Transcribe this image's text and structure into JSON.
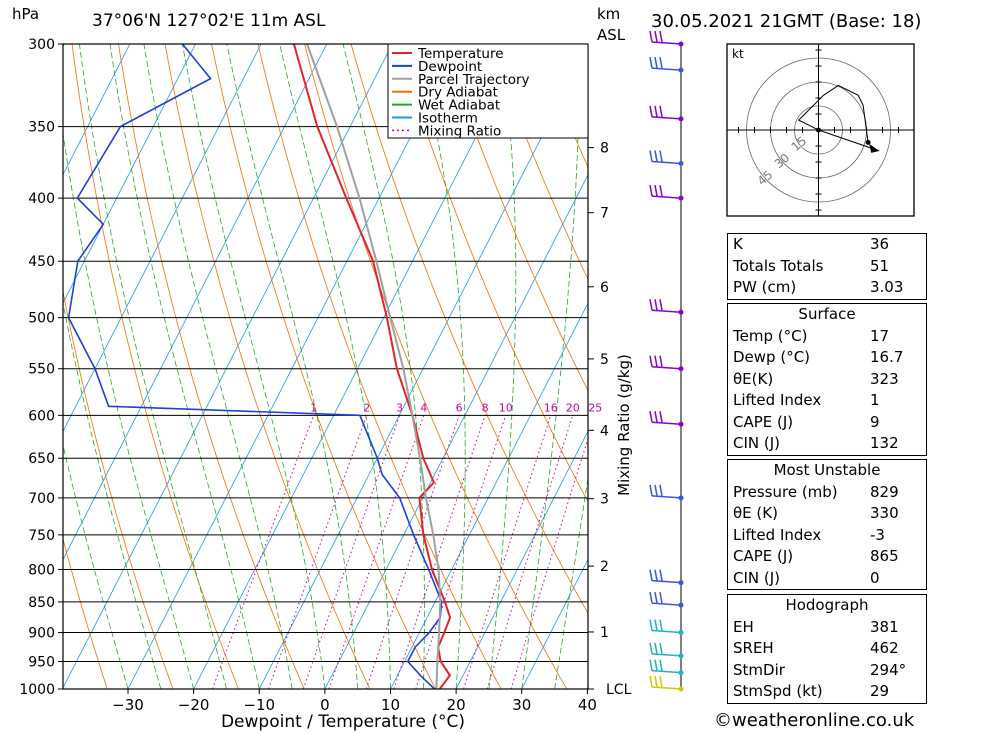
{
  "header": {
    "location": "37°06'N 127°02'E 11m ASL",
    "hpa_label": "hPa",
    "km_label": "km",
    "asl_label": "ASL",
    "datetime": "30.05.2021 21GMT (Base: 18)"
  },
  "footer": {
    "credit": "©weatheronline.co.uk"
  },
  "chart_data": {
    "type": "line",
    "subtype": "skew-T log-P diagram",
    "xlabel": "Dewpoint / Temperature (°C)",
    "ylabel": "hPa",
    "right_axis_label": "Mixing Ratio (g/kg)",
    "x_ticks": [
      -30,
      -20,
      -10,
      0,
      10,
      20,
      30,
      40
    ],
    "xlim": [
      -40,
      40
    ],
    "pressure_levels": [
      300,
      350,
      400,
      450,
      500,
      550,
      600,
      650,
      700,
      750,
      800,
      850,
      900,
      950,
      1000
    ],
    "ylim": [
      1000,
      300
    ],
    "km_ticks": [
      {
        "km": "8",
        "p": 364
      },
      {
        "km": "7",
        "p": 411
      },
      {
        "km": "6",
        "p": 472
      },
      {
        "km": "5",
        "p": 540
      },
      {
        "km": "4",
        "p": 617
      },
      {
        "km": "3",
        "p": 701
      },
      {
        "km": "2",
        "p": 795
      },
      {
        "km": "1",
        "p": 899
      },
      {
        "km": "LCL",
        "p": 1000
      }
    ],
    "mixing_ratio_labels": [
      "1",
      "2",
      "3",
      "4",
      "6",
      "8",
      "10",
      "16",
      "20",
      "25"
    ],
    "legend": [
      {
        "name": "Temperature",
        "color": "#e0242a",
        "style": "solid"
      },
      {
        "name": "Dewpoint",
        "color": "#1f3fd6",
        "style": "solid"
      },
      {
        "name": "Parcel Trajectory",
        "color": "#a0a0a0",
        "style": "solid"
      },
      {
        "name": "Dry Adiabat",
        "color": "#f07000",
        "style": "solid"
      },
      {
        "name": "Wet Adiabat",
        "color": "#22aa22",
        "style": "solid"
      },
      {
        "name": "Isotherm",
        "color": "#1e9be0",
        "style": "solid"
      },
      {
        "name": "Mixing Ratio",
        "color": "#cc0099",
        "style": "dotted"
      }
    ],
    "series": [
      {
        "name": "Temperature",
        "points": [
          [
            1000,
            17.5
          ],
          [
            975,
            18
          ],
          [
            950,
            15.5
          ],
          [
            925,
            14
          ],
          [
            900,
            13.8
          ],
          [
            875,
            13.5
          ],
          [
            850,
            11.5
          ],
          [
            800,
            7
          ],
          [
            750,
            3
          ],
          [
            700,
            -0.5
          ],
          [
            680,
            0.5
          ],
          [
            650,
            -3
          ],
          [
            600,
            -8
          ],
          [
            550,
            -14
          ],
          [
            500,
            -19.5
          ],
          [
            450,
            -26
          ],
          [
            400,
            -35
          ],
          [
            350,
            -45
          ],
          [
            300,
            -55
          ]
        ]
      },
      {
        "name": "Dewpoint",
        "points": [
          [
            1000,
            16.7
          ],
          [
            975,
            13.5
          ],
          [
            950,
            10.5
          ],
          [
            925,
            10.5
          ],
          [
            900,
            11.5
          ],
          [
            875,
            12
          ],
          [
            850,
            11
          ],
          [
            800,
            6.5
          ],
          [
            750,
            1.5
          ],
          [
            700,
            -3.5
          ],
          [
            670,
            -8
          ],
          [
            650,
            -10
          ],
          [
            600,
            -16
          ],
          [
            590,
            -55
          ],
          [
            550,
            -60
          ],
          [
            500,
            -68
          ],
          [
            450,
            -71
          ],
          [
            420,
            -70
          ],
          [
            400,
            -76
          ],
          [
            350,
            -75
          ],
          [
            320,
            -65
          ],
          [
            300,
            -72
          ]
        ]
      },
      {
        "name": "Parcel Trajectory",
        "points": [
          [
            1000,
            17
          ],
          [
            950,
            15
          ],
          [
            900,
            13
          ],
          [
            850,
            10.8
          ],
          [
            800,
            8
          ],
          [
            750,
            4.5
          ],
          [
            700,
            0.5
          ],
          [
            650,
            -3.5
          ],
          [
            600,
            -8
          ],
          [
            550,
            -13
          ],
          [
            500,
            -19
          ],
          [
            450,
            -25.5
          ],
          [
            400,
            -33
          ],
          [
            350,
            -42
          ],
          [
            300,
            -53
          ]
        ]
      }
    ],
    "wind_barbs": [
      {
        "p": 300,
        "color": "#8a00cc"
      },
      {
        "p": 315,
        "color": "#3a54e0"
      },
      {
        "p": 345,
        "color": "#8a00cc"
      },
      {
        "p": 375,
        "color": "#3a54e0"
      },
      {
        "p": 400,
        "color": "#8a00cc"
      },
      {
        "p": 495,
        "color": "#8a00cc"
      },
      {
        "p": 550,
        "color": "#8a00cc"
      },
      {
        "p": 610,
        "color": "#8a00cc"
      },
      {
        "p": 700,
        "color": "#3a54e0"
      },
      {
        "p": 820,
        "color": "#3a54e0"
      },
      {
        "p": 855,
        "color": "#3a54e0"
      },
      {
        "p": 900,
        "color": "#1ab4c8"
      },
      {
        "p": 940,
        "color": "#1ab4c8"
      },
      {
        "p": 970,
        "color": "#1ab4c8"
      },
      {
        "p": 1000,
        "color": "#cccc00"
      }
    ],
    "hodograph": {
      "unit_label": "kt",
      "ring_labels": [
        "15",
        "30",
        "45"
      ],
      "path_kt": [
        [
          0,
          0
        ],
        [
          -8,
          4
        ],
        [
          2,
          14
        ],
        [
          8,
          18
        ],
        [
          16,
          14
        ],
        [
          18,
          10
        ],
        [
          20,
          -5
        ]
      ],
      "storm_motion_kt": [
        14,
        -6
      ]
    }
  },
  "indices": [
    {
      "label": "K",
      "value": "36"
    },
    {
      "label": "Totals Totals",
      "value": "51"
    },
    {
      "label": "PW (cm)",
      "value": "3.03"
    }
  ],
  "surface": {
    "title": "Surface",
    "rows": [
      {
        "label": "Temp (°C)",
        "value": "17"
      },
      {
        "label": "Dewp (°C)",
        "value": "16.7"
      },
      {
        "label": "θE(K)",
        "value": "323"
      },
      {
        "label": "Lifted Index",
        "value": "1"
      },
      {
        "label": "CAPE (J)",
        "value": "9"
      },
      {
        "label": "CIN (J)",
        "value": "132"
      }
    ]
  },
  "most_unstable": {
    "title": "Most Unstable",
    "rows": [
      {
        "label": "Pressure (mb)",
        "value": "829"
      },
      {
        "label": "θE (K)",
        "value": "330"
      },
      {
        "label": "Lifted Index",
        "value": "-3"
      },
      {
        "label": "CAPE (J)",
        "value": "865"
      },
      {
        "label": "CIN (J)",
        "value": "0"
      }
    ]
  },
  "hodograph_table": {
    "title": "Hodograph",
    "rows": [
      {
        "label": "EH",
        "value": "381"
      },
      {
        "label": "SREH",
        "value": "462"
      },
      {
        "label": "StmDir",
        "value": "294°"
      },
      {
        "label": "StmSpd (kt)",
        "value": "29"
      }
    ]
  }
}
